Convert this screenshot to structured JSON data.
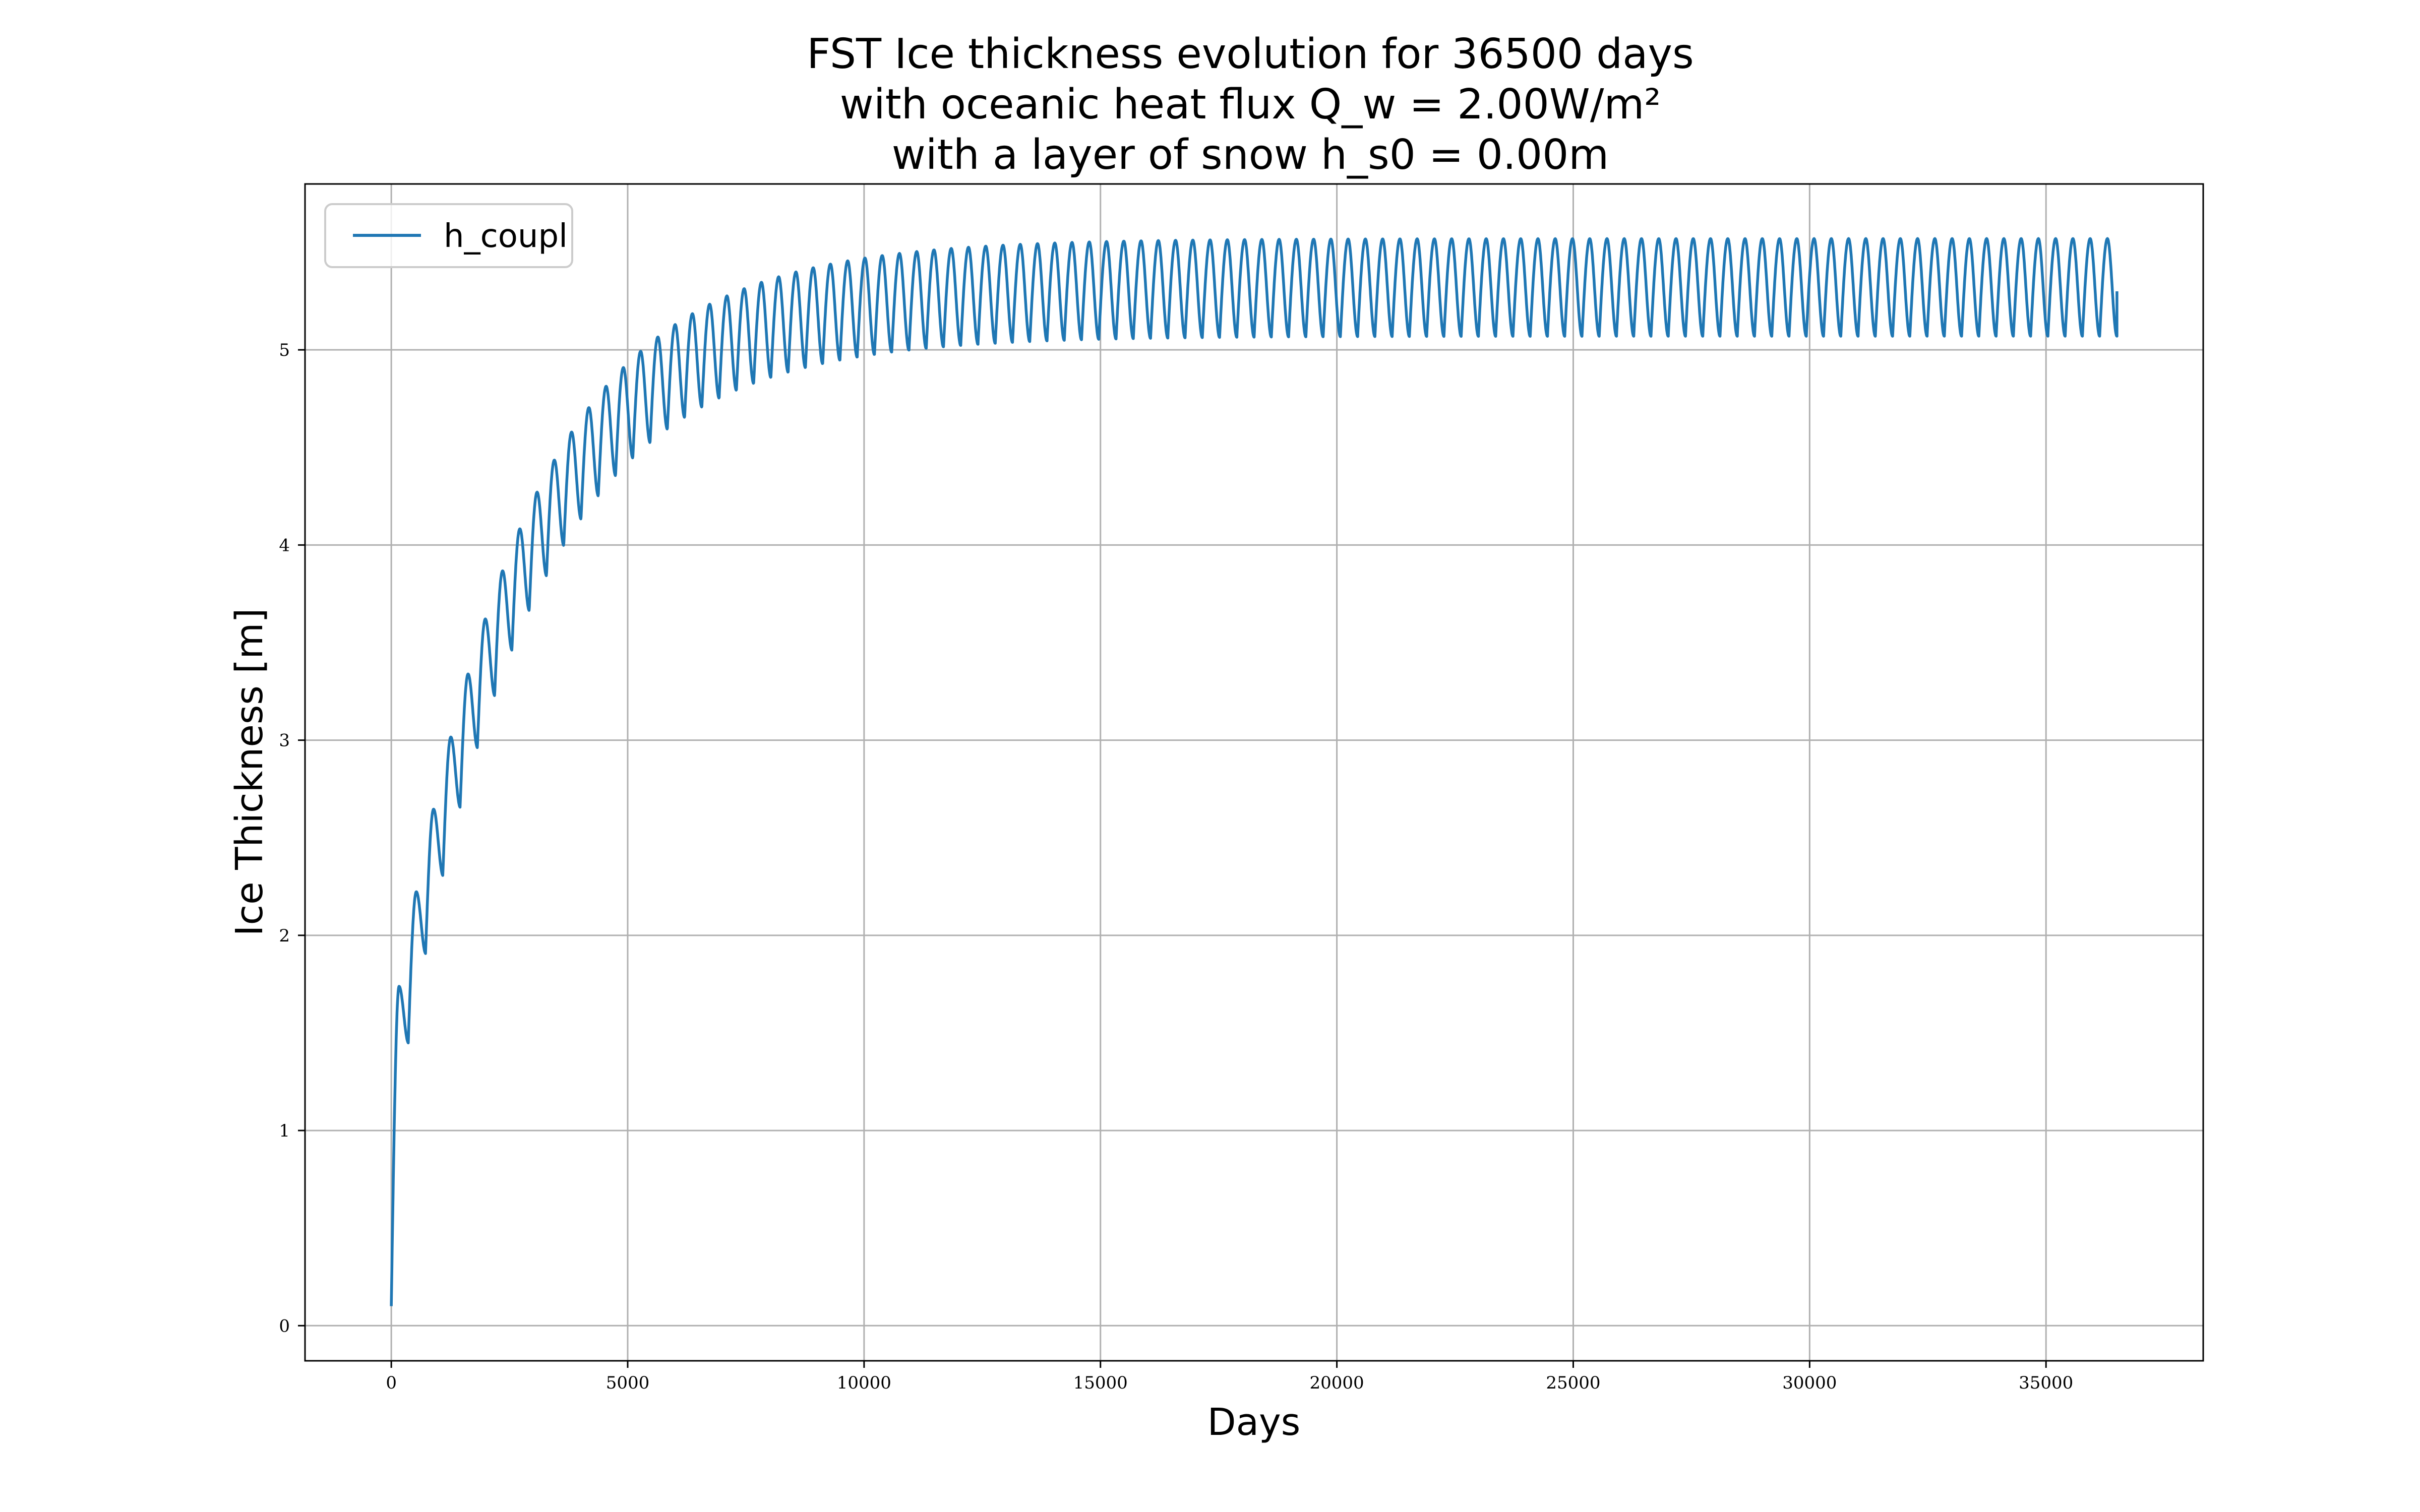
{
  "chart_data": {
    "type": "line",
    "title_lines": [
      "FST Ice thickness evolution for 36500 days",
      "with oceanic heat flux Q_w = 2.00W/m²",
      "with a layer of snow h_s0 = 0.00m"
    ],
    "xlabel": "Days",
    "ylabel": "Ice Thickness [m]",
    "xlim": [
      -1825,
      38325
    ],
    "ylim": [
      -0.18,
      5.85
    ],
    "xticks": [
      0,
      5000,
      10000,
      15000,
      20000,
      25000,
      30000,
      35000
    ],
    "yticks": [
      0,
      1,
      2,
      3,
      4,
      5
    ],
    "grid": true,
    "legend_position": "top-left",
    "series": [
      {
        "name": "h_coupl",
        "color": "#1f77b4",
        "description_points": [
          {
            "x": 0,
            "y": 0.1
          },
          {
            "x": 150,
            "y": 1.52
          },
          {
            "x": 1000,
            "y": 3.09
          },
          {
            "x": 2000,
            "y": 4.07
          },
          {
            "x": 3000,
            "y": 4.58
          },
          {
            "x": 5000,
            "y": 5.05
          },
          {
            "x": 10000,
            "y": 5.47
          },
          {
            "x": 15000,
            "y": 5.56
          },
          {
            "x": 36500,
            "y": 5.3
          }
        ],
        "seasonal_period_days": 365,
        "trough_start": 1.0,
        "trough_end": 5.07,
        "peak_start": 1.52,
        "peak_end": 5.57,
        "end_x": 36500,
        "end_y": 5.3
      }
    ]
  }
}
